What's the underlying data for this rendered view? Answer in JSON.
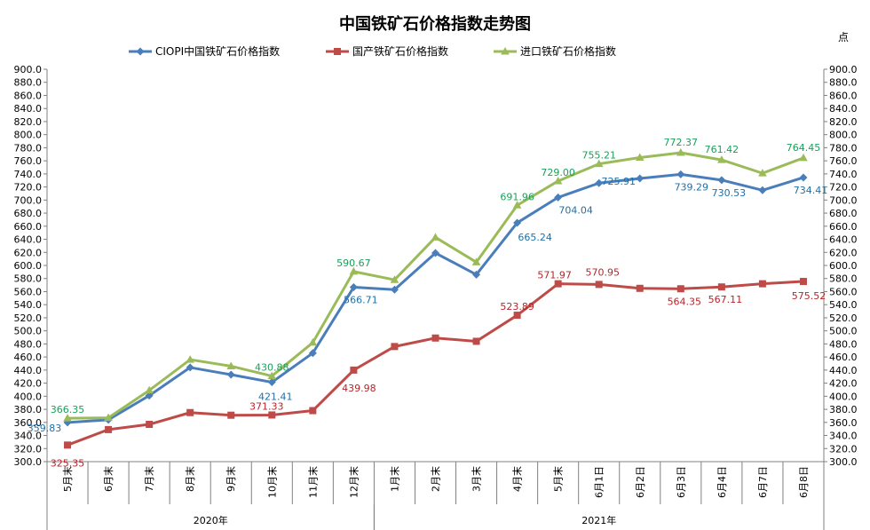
{
  "chart_data": {
    "type": "line",
    "title": "中国铁矿石价格指数走势图",
    "unit": "点",
    "ylim": [
      300,
      900
    ],
    "y_step": 20,
    "categories": [
      "5月末",
      "6月末",
      "7月末",
      "8月末",
      "9月末",
      "10月末",
      "11月末",
      "12月末",
      "1月末",
      "2月末",
      "3月末",
      "4月末",
      "5月末",
      "6月1日",
      "6月2日",
      "6月3日",
      "6月4日",
      "6月7日",
      "6月8日"
    ],
    "year_groups": [
      {
        "label": "2020年",
        "start": 0,
        "end": 7
      },
      {
        "label": "2021年",
        "start": 8,
        "end": 18
      }
    ],
    "series": [
      {
        "name": "CIOPI中国铁矿石价格指数",
        "color": "#4a7ebb",
        "label_color": "#1f6fa8",
        "marker": "diamond",
        "values": [
          359.83,
          364,
          401,
          444,
          433,
          421.41,
          466,
          566.71,
          563,
          619,
          586,
          665.24,
          704.04,
          725.91,
          733,
          739.29,
          730.53,
          715,
          734.41
        ],
        "labels": {
          "0": "359.83",
          "5": "421.41",
          "7": "566.71",
          "11": "665.24",
          "12": "704.04",
          "13": "725.91",
          "15": "739.29",
          "16": "730.53",
          "18": "734.41"
        }
      },
      {
        "name": "国产铁矿石价格指数",
        "color": "#be4b48",
        "label_color": "#b3262b",
        "marker": "square",
        "values": [
          325.35,
          349,
          357,
          375,
          371,
          371.33,
          378,
          439.98,
          476,
          489,
          484,
          523.89,
          571.97,
          570.95,
          565,
          564.35,
          567.11,
          572,
          575.52
        ],
        "labels": {
          "0": "325.35",
          "5": "371.33",
          "7": "439.98",
          "11": "523.89",
          "12": "571.97",
          "13": "570.95",
          "15": "564.35",
          "16": "567.11",
          "18": "575.52"
        }
      },
      {
        "name": "进口铁矿石价格指数",
        "color": "#9bbb59",
        "label_color": "#1aa05a",
        "marker": "triangle",
        "values": [
          366.35,
          367,
          409,
          456,
          446,
          430.88,
          482,
          590.67,
          578,
          643,
          605,
          691.96,
          729.0,
          755.21,
          765,
          772.37,
          761.42,
          741,
          764.45
        ],
        "labels": {
          "0": "366.35",
          "5": "430.88",
          "7": "590.67",
          "11": "691.96",
          "12": "729.00",
          "13": "755.21",
          "15": "772.37",
          "16": "761.42",
          "18": "764.45"
        }
      }
    ],
    "legend_position": "top",
    "grid": false
  }
}
